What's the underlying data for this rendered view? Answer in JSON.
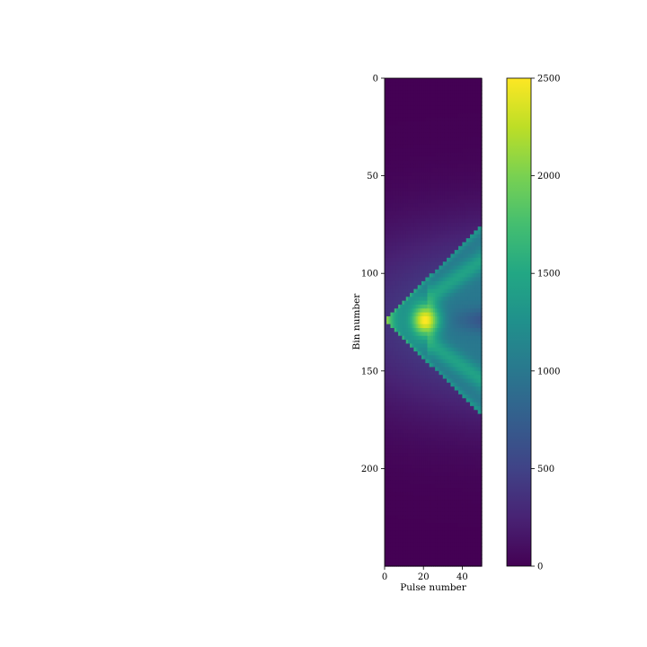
{
  "chart_data": {
    "type": "heatmap",
    "title": "",
    "xlabel": "Pulse number",
    "ylabel": "Bin number",
    "xlim": [
      0,
      50
    ],
    "ylim": [
      250,
      0
    ],
    "x_ticks": [
      0,
      20,
      40
    ],
    "y_ticks": [
      0,
      50,
      100,
      150,
      200
    ],
    "x_tick_labels": [
      "0",
      "20",
      "40"
    ],
    "y_tick_labels": [
      "0",
      "50",
      "100",
      "150",
      "200"
    ],
    "grid": false,
    "colormap": "viridis",
    "colorbar": {
      "vmin": 0,
      "vmax": 2500,
      "ticks": [
        0,
        500,
        1000,
        1500,
        2000,
        2500
      ],
      "tick_labels": [
        "0",
        "500",
        "1000",
        "1500",
        "2000",
        "2500"
      ]
    },
    "n_pulses": 50,
    "n_bins": 250,
    "features": {
      "apex": {
        "pulse": 1,
        "bin": 124,
        "value": 2400
      },
      "hot_spot": {
        "pulse": 21,
        "bin": 124,
        "value": 2500
      },
      "wedge_upper_edge_at_pulse_50": {
        "bin": 75,
        "value": 1300
      },
      "wedge_lower_edge_at_pulse_50": {
        "bin": 173,
        "value": 1300
      },
      "background_glow": {
        "center_bin": 124,
        "value": 650
      }
    }
  }
}
